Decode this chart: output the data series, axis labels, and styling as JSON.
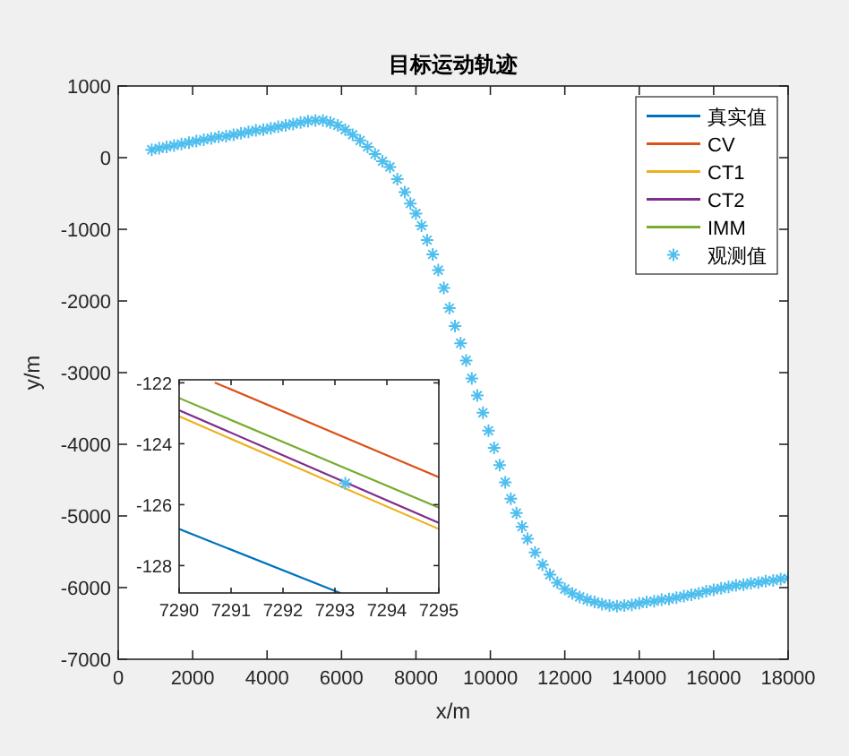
{
  "chart_data": [
    {
      "type": "line",
      "title": "目标运动轨迹",
      "xlabel": "x/m",
      "ylabel": "y/m",
      "xlim": [
        0,
        18000
      ],
      "xticks": [
        0,
        2000,
        4000,
        6000,
        8000,
        10000,
        12000,
        14000,
        16000,
        18000
      ],
      "ylim": [
        -7000,
        1000
      ],
      "yticks": [
        -7000,
        -6000,
        -5000,
        -4000,
        -3000,
        -2000,
        -1000,
        0,
        1000
      ],
      "legend": "top right",
      "series": [
        {
          "name": "真实值",
          "color": "#0072bd",
          "values": [
            null
          ]
        },
        {
          "name": "CV",
          "color": "#d95319",
          "values": [
            null
          ]
        },
        {
          "name": "CT1",
          "color": "#edb120",
          "values": [
            null
          ]
        },
        {
          "name": "CT2",
          "color": "#7e2f8e",
          "values": [
            null
          ]
        },
        {
          "name": "IMM",
          "color": "#77ac30",
          "values": [
            null
          ]
        },
        {
          "name": "观测值",
          "type": "scatter",
          "marker": "cross",
          "color": "#4dbeee",
          "x": [
            900,
            1100,
            1300,
            1500,
            1700,
            1900,
            2100,
            2300,
            2500,
            2700,
            2900,
            3100,
            3300,
            3500,
            3700,
            3900,
            4100,
            4300,
            4500,
            4700,
            4900,
            5100,
            5300,
            5500,
            5700,
            5900,
            6100,
            6300,
            6500,
            6700,
            6900,
            7100,
            7300,
            7500,
            7700,
            7850,
            8000,
            8150,
            8300,
            8450,
            8600,
            8750,
            8900,
            9050,
            9200,
            9350,
            9500,
            9650,
            9800,
            9950,
            10100,
            10250,
            10400,
            10550,
            10700,
            10850,
            11000,
            11200,
            11400,
            11600,
            11800,
            12000,
            12200,
            12400,
            12600,
            12800,
            13000,
            13200,
            13400,
            13600,
            13800,
            14000,
            14200,
            14400,
            14600,
            14800,
            15000,
            15200,
            15400,
            15600,
            15800,
            16000,
            16200,
            16400,
            16600,
            16800,
            17000,
            17200,
            17400,
            17600,
            17800,
            18000
          ],
          "values": [
            110,
            130,
            150,
            170,
            190,
            210,
            230,
            250,
            270,
            290,
            300,
            320,
            340,
            360,
            380,
            390,
            410,
            430,
            450,
            470,
            490,
            510,
            520,
            520,
            490,
            450,
            390,
            320,
            240,
            150,
            50,
            -50,
            -130,
            -300,
            -480,
            -640,
            -780,
            -950,
            -1150,
            -1350,
            -1570,
            -1820,
            -2100,
            -2350,
            -2590,
            -2830,
            -3080,
            -3320,
            -3560,
            -3810,
            -4050,
            -4290,
            -4530,
            -4760,
            -4960,
            -5150,
            -5320,
            -5510,
            -5680,
            -5820,
            -5930,
            -6020,
            -6080,
            -6130,
            -6170,
            -6200,
            -6230,
            -6250,
            -6260,
            -6250,
            -6240,
            -6220,
            -6200,
            -6190,
            -6170,
            -6160,
            -6140,
            -6120,
            -6100,
            -6080,
            -6050,
            -6030,
            -6010,
            -5990,
            -5970,
            -5960,
            -5940,
            -5930,
            -5910,
            -5900,
            -5880,
            -5870
          ]
        }
      ]
    },
    {
      "type": "line",
      "xlim": [
        7290,
        7295
      ],
      "xticks": [
        7290,
        7291,
        7292,
        7293,
        7294,
        7295
      ],
      "ylim": [
        -128.9,
        -121.9
      ],
      "yticks": [
        -128,
        -126,
        -124,
        -122
      ],
      "series": [
        {
          "color": "#0072bd",
          "x": [
            7290,
            7293.1
          ],
          "values": [
            -126.8,
            -128.9
          ]
        },
        {
          "color": "#d95319",
          "x": [
            7290.7,
            7295
          ],
          "values": [
            -122.0,
            -125.1
          ]
        },
        {
          "color": "#edb120",
          "x": [
            7290,
            7295
          ],
          "values": [
            -123.1,
            -126.8
          ]
        },
        {
          "color": "#7e2f8e",
          "x": [
            7290,
            7295
          ],
          "values": [
            -122.9,
            -126.6
          ]
        },
        {
          "color": "#77ac30",
          "x": [
            7290,
            7295
          ],
          "values": [
            -122.5,
            -126.1
          ]
        },
        {
          "type": "scatter",
          "marker": "cross",
          "color": "#4dbeee",
          "x": [
            7293.2
          ],
          "values": [
            -125.3
          ]
        }
      ]
    }
  ]
}
